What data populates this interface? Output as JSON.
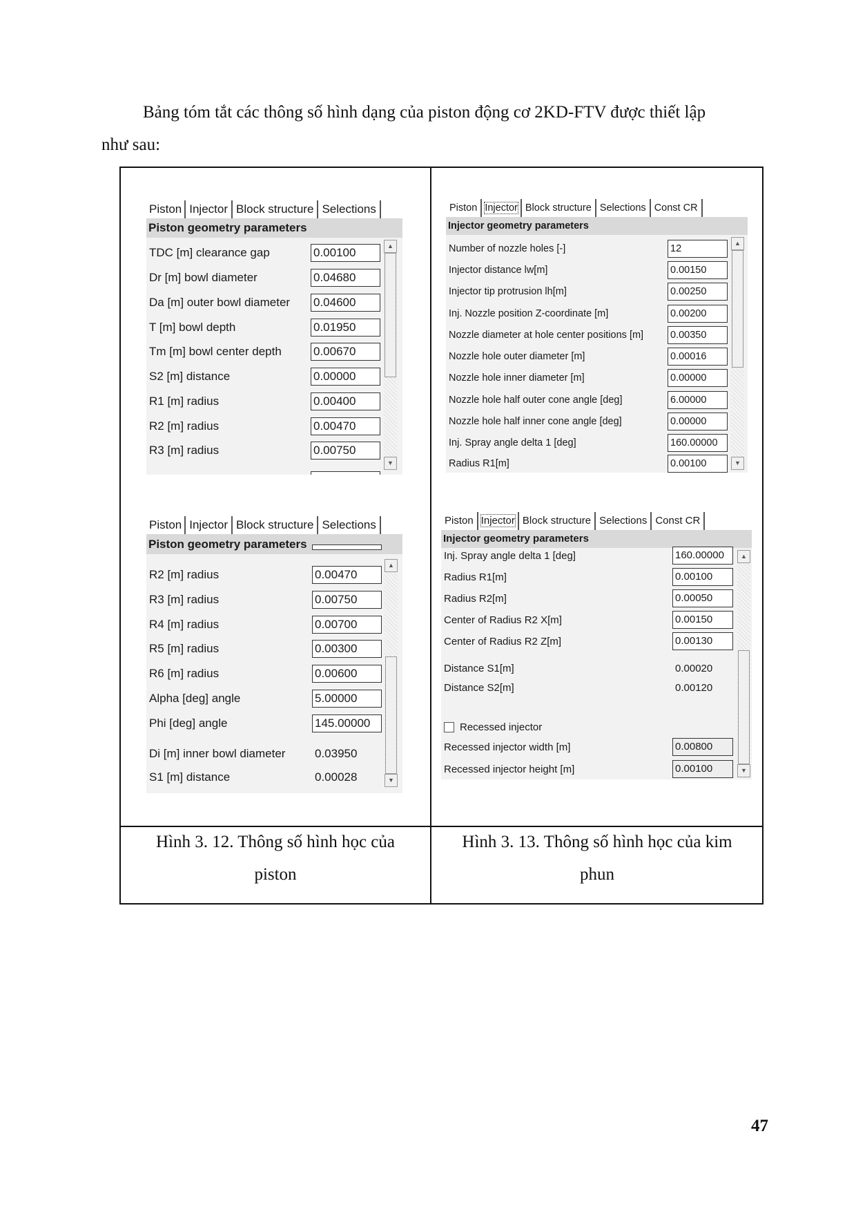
{
  "intro": {
    "line1": "Bảng tóm tắt các thông số hình dạng của piston động cơ 2KD-FTV được thiết lập",
    "line2": "như sau:"
  },
  "captions": {
    "left_line1": "Hình 3. 12. Thông số hình học của",
    "left_line2": "piston",
    "right_line1": "Hình 3. 13. Thông số hình học của kim",
    "right_line2": "phun"
  },
  "page_number": "47",
  "panels": [
    {
      "id": "piston-top",
      "tabs": [
        "Piston",
        "Injector",
        "Block structure",
        "Selections"
      ],
      "active_tab": 0,
      "header": "Piston geometry parameters",
      "scroll_position": 0.0,
      "rows": [
        {
          "label": "TDC [m] clearance gap",
          "value": "0.00100",
          "kind": "input"
        },
        {
          "label": "Dr [m] bowl diameter",
          "value": "0.04680",
          "kind": "input"
        },
        {
          "label": "Da [m] outer bowl diameter",
          "value": "0.04600",
          "kind": "input"
        },
        {
          "label": "T [m] bowl depth",
          "value": "0.01950",
          "kind": "input"
        },
        {
          "label": "Tm [m] bowl center depth",
          "value": "0.00670",
          "kind": "input"
        },
        {
          "label": "S2 [m] distance",
          "value": "0.00000",
          "kind": "input"
        },
        {
          "label": "R1 [m] radius",
          "value": "0.00400",
          "kind": "input"
        },
        {
          "label": "R2 [m] radius",
          "value": "0.00470",
          "kind": "input"
        },
        {
          "label": "R3 [m] radius",
          "value": "0.00750",
          "kind": "input"
        }
      ]
    },
    {
      "id": "injector-top",
      "tabs": [
        "Piston",
        "Injector",
        "Block structure",
        "Selections",
        "Const CR"
      ],
      "active_tab": 1,
      "header": "Injector geometry parameters",
      "scroll_position": 0.0,
      "rows": [
        {
          "label": "Number of nozzle holes [-]",
          "value": "12",
          "kind": "input"
        },
        {
          "label": "Injector distance lw[m]",
          "value": "0.00150",
          "kind": "input"
        },
        {
          "label": "Injector tip protrusion lh[m]",
          "value": "0.00250",
          "kind": "input"
        },
        {
          "label": "Inj. Nozzle position Z-coordinate [m]",
          "value": "0.00200",
          "kind": "input"
        },
        {
          "label": "Nozzle diameter at hole center positions [m]",
          "value": "0.00350",
          "kind": "input"
        },
        {
          "label": "Nozzle hole outer diameter [m]",
          "value": "0.00016",
          "kind": "input"
        },
        {
          "label": "Nozzle hole inner diameter [m]",
          "value": "0.00000",
          "kind": "input"
        },
        {
          "label": "Nozzle hole half outer cone angle [deg]",
          "value": "6.00000",
          "kind": "input"
        },
        {
          "label": "Nozzle hole half inner cone angle [deg]",
          "value": "0.00000",
          "kind": "input"
        },
        {
          "label": "Inj. Spray angle delta 1 [deg]",
          "value": "160.00000",
          "kind": "input"
        },
        {
          "label": "Radius R1[m]",
          "value": "0.00100",
          "kind": "input"
        }
      ]
    },
    {
      "id": "piston-bottom",
      "tabs": [
        "Piston",
        "Injector",
        "Block structure",
        "Selections"
      ],
      "active_tab": 0,
      "header": "Piston geometry parameters",
      "scroll_position": 1.0,
      "rows": [
        {
          "label": "R2 [m] radius",
          "value": "0.00470",
          "kind": "input"
        },
        {
          "label": "R3 [m] radius",
          "value": "0.00750",
          "kind": "input"
        },
        {
          "label": "R4 [m] radius",
          "value": "0.00700",
          "kind": "input"
        },
        {
          "label": "R5 [m] radius",
          "value": "0.00300",
          "kind": "input"
        },
        {
          "label": "R6 [m] radius",
          "value": "0.00600",
          "kind": "input"
        },
        {
          "label": "Alpha [deg] angle",
          "value": "5.00000",
          "kind": "input"
        },
        {
          "label": "Phi [deg] angle",
          "value": "145.00000",
          "kind": "input"
        },
        {
          "label": "Di [m] inner bowl diameter",
          "value": "0.03950",
          "kind": "static"
        },
        {
          "label": "S1 [m] distance",
          "value": "0.00028",
          "kind": "static"
        }
      ]
    },
    {
      "id": "injector-bottom",
      "tabs": [
        "Piston",
        "Injector",
        "Block structure",
        "Selections",
        "Const CR"
      ],
      "active_tab": 1,
      "header": "Injector geometry parameters",
      "scroll_position": 1.0,
      "rows": [
        {
          "label": "Inj. Spray angle delta 1 [deg]",
          "value": "160.00000",
          "kind": "input"
        },
        {
          "label": "Radius R1[m]",
          "value": "0.00100",
          "kind": "input"
        },
        {
          "label": "Radius R2[m]",
          "value": "0.00050",
          "kind": "input"
        },
        {
          "label": "Center of Radius R2 X[m]",
          "value": "0.00150",
          "kind": "input"
        },
        {
          "label": "Center of Radius R2 Z[m]",
          "value": "0.00130",
          "kind": "input"
        },
        {
          "label": "Distance S1[m]",
          "value": "0.00020",
          "kind": "static"
        },
        {
          "label": "Distance S2[m]",
          "value": "0.00120",
          "kind": "static"
        },
        {
          "label": "Recessed injector",
          "checked": false,
          "kind": "checkbox"
        },
        {
          "label": "Recessed injector width [m]",
          "value": "0.00800",
          "kind": "disabled"
        },
        {
          "label": "Recessed injector height [m]",
          "value": "0.00100",
          "kind": "disabled"
        }
      ]
    }
  ]
}
